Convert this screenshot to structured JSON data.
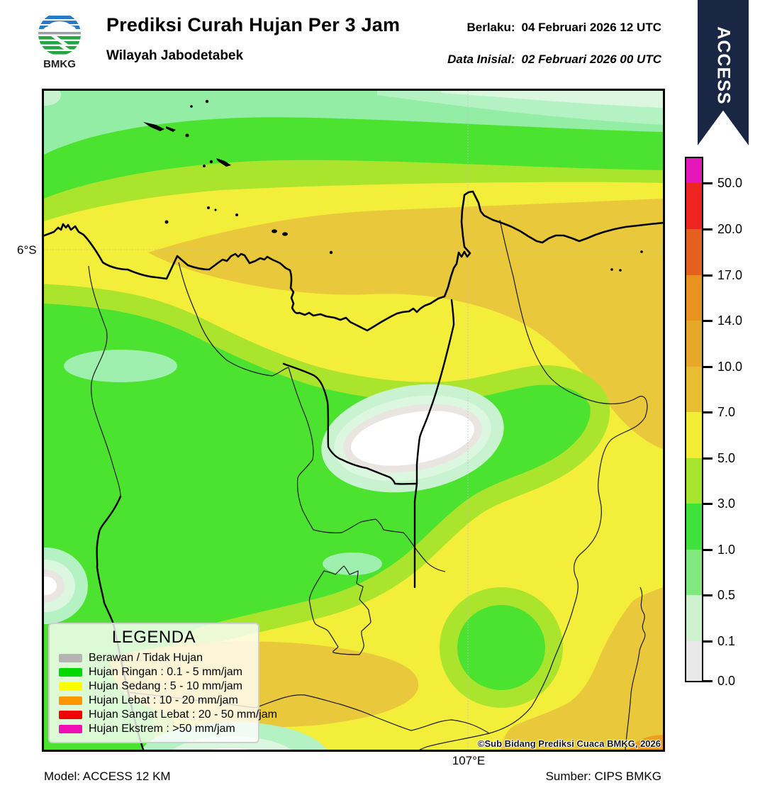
{
  "header": {
    "logo_text": "BMKG",
    "title": "Prediksi Curah Hujan Per 3 Jam",
    "subtitle": "Wilayah Jabodetabek",
    "valid_label": "Berlaku:",
    "valid_value": "04 Februari 2026 12 UTC",
    "init_label": "Data Inisial:",
    "init_value": "02 Februari 2026 00 UTC",
    "ribbon": "ACCESS",
    "ribbon_color": "#1a2744"
  },
  "map": {
    "lat_label": "6°S",
    "lon_label": "107°E",
    "copyright": "©Sub Bidang Prediksi Cuaca BMKG, 2026",
    "palette": {
      "green": "#4ce330",
      "yg": "#abe42d",
      "yellow": "#f3ee3a",
      "mustard": "#eac83b",
      "orange": "#ef9d24",
      "mint": "#93eda4",
      "mint_mid": "#9fefae",
      "mint_light": "#b4f1c3",
      "mint_pale": "#c9f3d0",
      "mint_palest": "#dcf7e0",
      "dry_gray": "#e9e6e2",
      "white": "#ffffff",
      "navy": "#1a2744"
    }
  },
  "scale": {
    "unit_ticks": [
      "50.0",
      "20.0",
      "17.0",
      "14.0",
      "10.0",
      "7.0",
      "5.0",
      "3.0",
      "1.0",
      "0.5",
      "0.1",
      "0.0"
    ],
    "segment_colors": [
      "#e616bd",
      "#ed2420",
      "#e4601f",
      "#e9921f",
      "#e7a72a",
      "#e7bd31",
      "#f2ee38",
      "#a6e42f",
      "#3fe23a",
      "#7fe97f",
      "#cdf2cd",
      "#e9e9e9"
    ]
  },
  "legend": {
    "title": "LEGENDA",
    "items": [
      {
        "label": "Berawan / Tidak Hujan",
        "color": "#b5b5b5"
      },
      {
        "label": "Hujan Ringan : 0.1 - 5 mm/jam",
        "color": "#00d800"
      },
      {
        "label": "Hujan Sedang : 5 - 10 mm/jam",
        "color": "#ffff00"
      },
      {
        "label": "Hujan Lebat : 10 - 20 mm/jam",
        "color": "#ff9700"
      },
      {
        "label": "Hujan Sangat Lebat : 20 - 50 mm/jam",
        "color": "#f00000"
      },
      {
        "label": "Hujan Ekstrem : >50 mm/jam",
        "color": "#f00fb4"
      }
    ]
  },
  "footer": {
    "model": "Model: ACCESS 12 KM",
    "source": "Sumber: CIPS BMKG"
  }
}
